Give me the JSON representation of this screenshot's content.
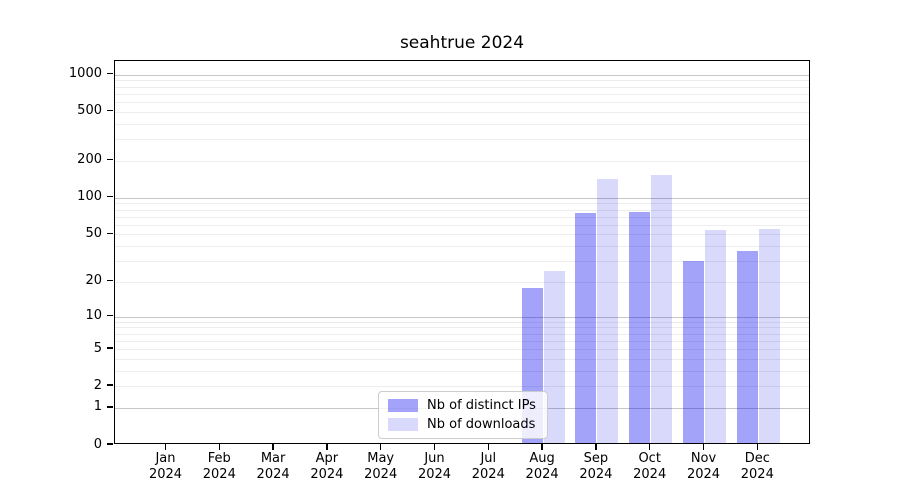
{
  "chart_data": {
    "type": "bar",
    "title": "seahtrue 2024",
    "year_label": "2024",
    "categories": [
      "Jan",
      "Feb",
      "Mar",
      "Apr",
      "May",
      "Jun",
      "Jul",
      "Aug",
      "Sep",
      "Oct",
      "Nov",
      "Dec"
    ],
    "series": [
      {
        "key": "distinct-ips",
        "name": "Nb of distinct IPs",
        "color": "rgba(0,0,238,0.36)",
        "values": [
          0,
          0,
          0,
          0,
          0,
          0,
          0,
          17,
          72,
          74,
          29,
          35
        ]
      },
      {
        "key": "downloads",
        "name": "Nb of downloads",
        "color": "rgba(0,0,238,0.15)",
        "values": [
          0,
          0,
          0,
          0,
          0,
          0,
          0,
          24,
          138,
          148,
          52,
          53
        ]
      }
    ],
    "y_scale": "log10(1+y)",
    "y_ticks": [
      0,
      1,
      2,
      5,
      10,
      20,
      50,
      100,
      200,
      500,
      1000
    ],
    "ylim": [
      0,
      1290
    ],
    "grid": "major-and-minor-horizontal",
    "legend_position": "lower-center-inside",
    "colors": {
      "major_grid": "#c6c6c6",
      "minor_grid": "#ededed",
      "axis": "#000000",
      "legend_border": "#cccccc"
    }
  }
}
